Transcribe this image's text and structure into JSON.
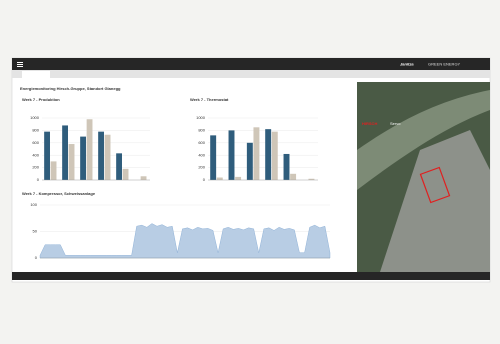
{
  "header": {
    "brand": "Janitza",
    "tagline": "GREEN ENERGY"
  },
  "page_title": "Energiemonitoring Hirsch-Gruppe, Standort Glanegg",
  "map": {
    "brand": "HIRSCH",
    "product": "Servo"
  },
  "chart_data": [
    {
      "type": "bar",
      "title": "Werk 7 - Produktion",
      "series": [
        {
          "color": "#2f5d7c",
          "values": [
            780,
            880,
            700,
            780,
            430,
            null
          ]
        },
        {
          "color": "#cfc6b8",
          "values": [
            300,
            580,
            980,
            730,
            180,
            60
          ]
        }
      ],
      "ylim": [
        0,
        1000
      ],
      "yticks": [
        0,
        200,
        400,
        600,
        800,
        1000
      ],
      "grid": true
    },
    {
      "type": "bar",
      "title": "Werk 7 - Thermostat",
      "series": [
        {
          "color": "#2f5d7c",
          "values": [
            720,
            800,
            600,
            820,
            420,
            null
          ]
        },
        {
          "color": "#cfc6b8",
          "values": [
            40,
            50,
            850,
            780,
            100,
            20
          ]
        }
      ],
      "ylim": [
        0,
        1000
      ],
      "yticks": [
        0,
        200,
        400,
        600,
        800,
        1000
      ],
      "grid": true
    },
    {
      "type": "area",
      "title": "Werk 7 - Kompressor, Schweissanlage",
      "color": "#b8cde4",
      "values": [
        5,
        25,
        25,
        25,
        25,
        5,
        5,
        5,
        5,
        5,
        5,
        5,
        5,
        5,
        5,
        5,
        5,
        5,
        5,
        60,
        62,
        58,
        65,
        60,
        63,
        58,
        60,
        10,
        55,
        57,
        53,
        58,
        55,
        56,
        52,
        10,
        55,
        58,
        54,
        56,
        53,
        57,
        55,
        10,
        55,
        57,
        52,
        58,
        54,
        56,
        53,
        10,
        10,
        58,
        62,
        57,
        60,
        10
      ],
      "ylim": [
        0,
        100
      ],
      "yticks": [
        0,
        50,
        100
      ],
      "grid": true
    }
  ]
}
